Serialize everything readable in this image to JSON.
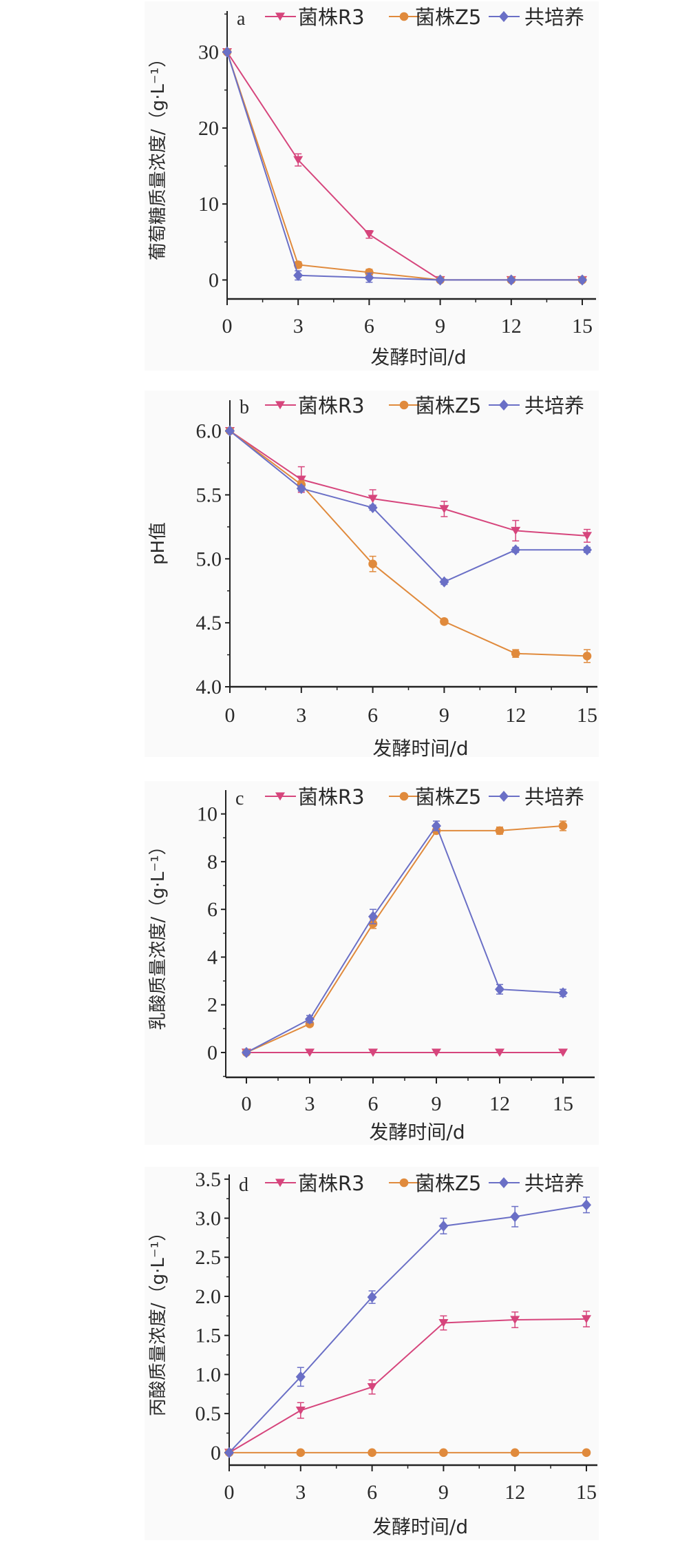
{
  "colors": {
    "R3": "#d6457c",
    "Z5": "#e08a3c",
    "co": "#6a6fc6"
  },
  "legend": {
    "R3": "菌株R3",
    "Z5": "菌株Z5",
    "co": "共培养"
  },
  "chart_data": [
    {
      "type": "line",
      "panel": "a",
      "xlabel": "发酵时间/d",
      "ylabel": "葡萄糖质量浓度/（g·L⁻¹）",
      "x": [
        0,
        3,
        6,
        9,
        12,
        15
      ],
      "xticks": [
        "0",
        "3",
        "6",
        "9",
        "12",
        "15"
      ],
      "yticks": [
        "0",
        "10",
        "20",
        "30"
      ],
      "ytick_values": [
        0,
        10,
        20,
        30
      ],
      "xlim": [
        0,
        15
      ],
      "ylim": [
        -2.5,
        35.4
      ],
      "series": [
        {
          "key": "R3",
          "name": "菌株R3",
          "marker": "triangle-down",
          "values": [
            30,
            15.8,
            6.0,
            0,
            0,
            0
          ],
          "err": [
            0.2,
            0.8,
            0.5,
            0.1,
            0.1,
            0.1
          ]
        },
        {
          "key": "Z5",
          "name": "菌株Z5",
          "marker": "circle",
          "values": [
            30,
            2.0,
            1.0,
            0,
            0,
            0
          ],
          "err": [
            0.2,
            0.4,
            0.4,
            0.1,
            0.1,
            0.1
          ]
        },
        {
          "key": "co",
          "name": "共培养",
          "marker": "diamond",
          "values": [
            30,
            0.6,
            0.3,
            0,
            0,
            0
          ],
          "err": [
            0.2,
            0.6,
            0.6,
            0.1,
            0.1,
            0.1
          ]
        }
      ]
    },
    {
      "type": "line",
      "panel": "b",
      "xlabel": "发酵时间/d",
      "ylabel": "pH值",
      "x": [
        0,
        3,
        6,
        9,
        12,
        15
      ],
      "xticks": [
        "0",
        "3",
        "6",
        "9",
        "12",
        "15"
      ],
      "yticks": [
        "4.0",
        "4.5",
        "5.0",
        "5.5",
        "6.0"
      ],
      "ytick_values": [
        4.0,
        4.5,
        5.0,
        5.5,
        6.0
      ],
      "xlim": [
        0,
        15
      ],
      "ylim": [
        4.0,
        6.24
      ],
      "series": [
        {
          "key": "R3",
          "name": "菌株R3",
          "marker": "triangle-down",
          "values": [
            6.0,
            5.62,
            5.47,
            5.39,
            5.22,
            5.18
          ],
          "err": [
            0.01,
            0.1,
            0.07,
            0.06,
            0.08,
            0.05
          ]
        },
        {
          "key": "Z5",
          "name": "菌株Z5",
          "marker": "circle",
          "values": [
            6.0,
            5.58,
            4.96,
            4.51,
            4.26,
            4.24
          ],
          "err": [
            0.01,
            0.03,
            0.06,
            0.02,
            0.03,
            0.05
          ]
        },
        {
          "key": "co",
          "name": "共培养",
          "marker": "diamond",
          "values": [
            6.0,
            5.55,
            5.4,
            4.82,
            5.07,
            5.07
          ],
          "err": [
            0.01,
            0.02,
            0.02,
            0.02,
            0.02,
            0.02
          ]
        }
      ]
    },
    {
      "type": "line",
      "panel": "c",
      "xlabel": "发酵时间/d",
      "ylabel": "乳酸质量浓度/（g·L⁻¹）",
      "x": [
        0,
        3,
        6,
        9,
        12,
        15
      ],
      "xticks": [
        "0",
        "3",
        "6",
        "9",
        "12",
        "15"
      ],
      "yticks": [
        "0",
        "2",
        "4",
        "6",
        "8",
        "10"
      ],
      "ytick_values": [
        0,
        2,
        4,
        6,
        8,
        10
      ],
      "xlim": [
        -1.5,
        17.3
      ],
      "ylim": [
        -1.04,
        11.0
      ],
      "series": [
        {
          "key": "R3",
          "name": "菌株R3",
          "marker": "triangle-down",
          "values": [
            0,
            0,
            0,
            0,
            0,
            0
          ],
          "err": [
            0,
            0,
            0,
            0,
            0,
            0
          ]
        },
        {
          "key": "Z5",
          "name": "菌株Z5",
          "marker": "circle",
          "values": [
            0,
            1.2,
            5.4,
            9.3,
            9.3,
            9.5
          ],
          "err": [
            0.05,
            0.1,
            0.2,
            0.1,
            0.15,
            0.2
          ]
        },
        {
          "key": "co",
          "name": "共培养",
          "marker": "diamond",
          "values": [
            0,
            1.4,
            5.7,
            9.5,
            2.65,
            2.5
          ],
          "err": [
            0.05,
            0.15,
            0.3,
            0.2,
            0.2,
            0.15
          ]
        }
      ]
    },
    {
      "type": "line",
      "panel": "d",
      "xlabel": "发酵时间/d",
      "ylabel": "丙酸质量浓度/（g·L⁻¹）",
      "x": [
        0,
        3,
        6,
        9,
        12,
        15
      ],
      "xticks": [
        "0",
        "3",
        "6",
        "9",
        "12",
        "15"
      ],
      "yticks": [
        "0",
        "0.5",
        "1.0",
        "1.5",
        "2.0",
        "2.5",
        "3.0",
        "3.5"
      ],
      "ytick_values": [
        0,
        0.5,
        1.0,
        1.5,
        2.0,
        2.5,
        3.0,
        3.5
      ],
      "xlim": [
        0,
        15
      ],
      "ylim": [
        -0.16,
        3.56
      ],
      "series": [
        {
          "key": "R3",
          "name": "菌株R3",
          "marker": "triangle-down",
          "values": [
            0,
            0.54,
            0.84,
            1.66,
            1.7,
            1.71
          ],
          "err": [
            0.01,
            0.1,
            0.09,
            0.09,
            0.1,
            0.1
          ]
        },
        {
          "key": "Z5",
          "name": "菌株Z5",
          "marker": "circle",
          "values": [
            0,
            0,
            0,
            0,
            0,
            0
          ],
          "err": [
            0,
            0,
            0,
            0,
            0,
            0
          ]
        },
        {
          "key": "co",
          "name": "共培养",
          "marker": "diamond",
          "values": [
            0,
            0.97,
            1.99,
            2.9,
            3.02,
            3.17
          ],
          "err": [
            0.01,
            0.12,
            0.08,
            0.1,
            0.13,
            0.1
          ]
        }
      ]
    }
  ]
}
